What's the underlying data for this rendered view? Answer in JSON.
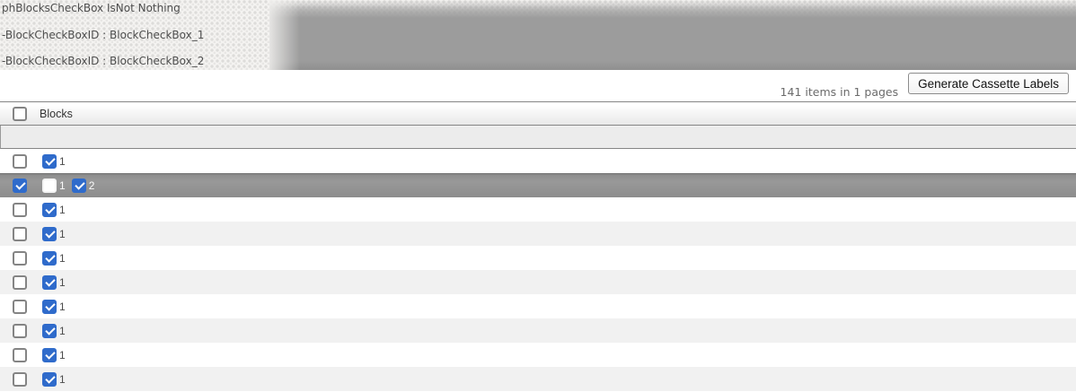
{
  "debug_panel": {
    "lines": [
      "phBlocksCheckBox IsNot Nothing",
      "-BlockCheckBoxID : BlockCheckBox_1",
      "-BlockCheckBoxID : BlockCheckBox_2"
    ]
  },
  "toolbar": {
    "items_summary": "141 items in 1 pages",
    "generate_button_label": "Generate Cassette Labels"
  },
  "table": {
    "header": {
      "column_label": "Blocks",
      "select_all_checked": false
    },
    "rows": [
      {
        "selected": false,
        "row_checked": false,
        "blocks": [
          {
            "label": "1",
            "checked": true
          }
        ]
      },
      {
        "selected": true,
        "row_checked": true,
        "blocks": [
          {
            "label": "1",
            "checked": false
          },
          {
            "label": "2",
            "checked": true
          }
        ]
      },
      {
        "selected": false,
        "row_checked": false,
        "blocks": [
          {
            "label": "1",
            "checked": true
          }
        ]
      },
      {
        "selected": false,
        "row_checked": false,
        "blocks": [
          {
            "label": "1",
            "checked": true
          }
        ]
      },
      {
        "selected": false,
        "row_checked": false,
        "blocks": [
          {
            "label": "1",
            "checked": true
          }
        ]
      },
      {
        "selected": false,
        "row_checked": false,
        "blocks": [
          {
            "label": "1",
            "checked": true
          }
        ]
      },
      {
        "selected": false,
        "row_checked": false,
        "blocks": [
          {
            "label": "1",
            "checked": true
          }
        ]
      },
      {
        "selected": false,
        "row_checked": false,
        "blocks": [
          {
            "label": "1",
            "checked": true
          }
        ]
      },
      {
        "selected": false,
        "row_checked": false,
        "blocks": [
          {
            "label": "1",
            "checked": true
          }
        ]
      },
      {
        "selected": false,
        "row_checked": false,
        "blocks": [
          {
            "label": "1",
            "checked": true
          }
        ]
      }
    ]
  },
  "colors": {
    "accent_blue": "#2f6bcb",
    "selected_row_gray": "#919191",
    "banner_gray": "#9c9c9c",
    "alt_row_gray": "#f1f1f1"
  }
}
